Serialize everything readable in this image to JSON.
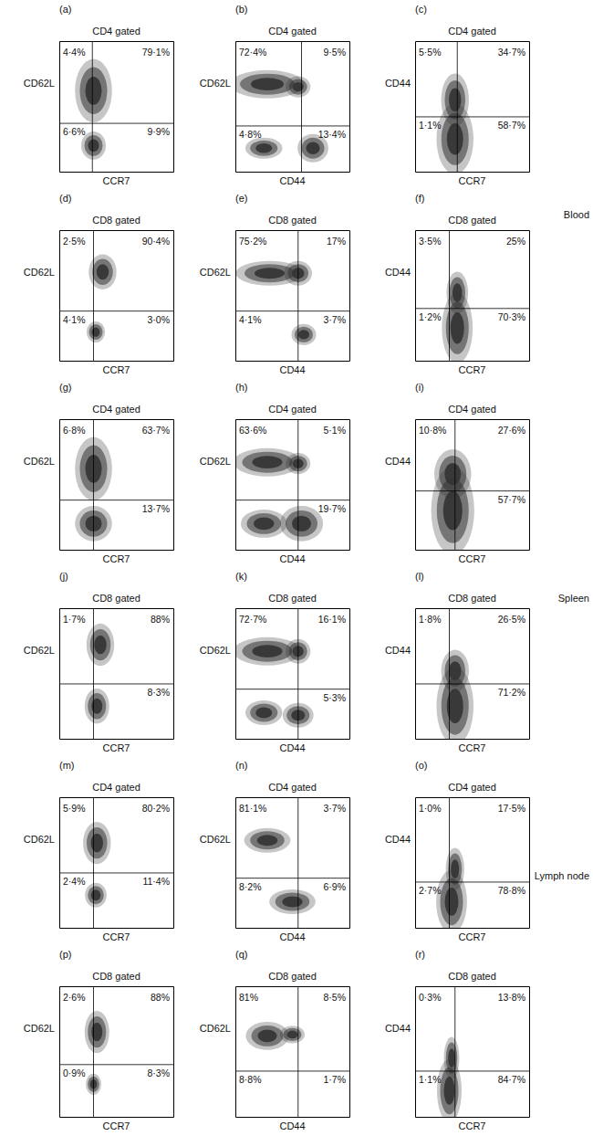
{
  "chart_data": [
    {
      "type": "scatter",
      "panel": "(a)",
      "title": "CD4 gated",
      "x_label": "CCR7",
      "y_label": "CD62L",
      "xlim": [
        0,
        100
      ],
      "ylim": [
        0,
        100
      ],
      "tick_labels": false,
      "color": "#333333",
      "data_labels": true,
      "gate": {
        "x": 29,
        "y": 37
      },
      "clusters": [
        {
          "x": 30,
          "y": 62,
          "rx": 12,
          "ry": 18
        },
        {
          "x": 30,
          "y": 20,
          "rx": 8,
          "ry": 8
        }
      ],
      "values": [
        4.4,
        79.1,
        6.6,
        9.9
      ],
      "value_labels": [
        "4·4%",
        "79·1%",
        "6·6%",
        "9·9%"
      ]
    },
    {
      "type": "scatter",
      "panel": "(b)",
      "title": "CD4 gated",
      "x_label": "CD44",
      "y_label": "CD62L",
      "xlim": [
        0,
        100
      ],
      "ylim": [
        0,
        100
      ],
      "tick_labels": false,
      "color": "#333333",
      "data_labels": true,
      "gate": {
        "x": 58,
        "y": 35
      },
      "clusters": [
        {
          "x": 28,
          "y": 67,
          "rx": 24,
          "ry": 8
        },
        {
          "x": 55,
          "y": 65,
          "rx": 8,
          "ry": 6
        },
        {
          "x": 68,
          "y": 18,
          "rx": 10,
          "ry": 8
        },
        {
          "x": 25,
          "y": 18,
          "rx": 12,
          "ry": 6
        }
      ],
      "values": [
        72.4,
        9.5,
        4.8,
        13.4
      ],
      "value_labels": [
        "72·4%",
        "9·5%",
        "4·8%",
        "13·4%"
      ]
    },
    {
      "type": "scatter",
      "panel": "(c)",
      "title": "CD4 gated",
      "x_label": "CCR7",
      "y_label": "CD44",
      "xlim": [
        0,
        100
      ],
      "ylim": [
        0,
        100
      ],
      "tick_labels": false,
      "color": "#333333",
      "data_labels": true,
      "gate": {
        "x": 37,
        "y": 42
      },
      "annotation": "Blood",
      "clusters": [
        {
          "x": 35,
          "y": 25,
          "rx": 12,
          "ry": 20
        },
        {
          "x": 35,
          "y": 55,
          "rx": 9,
          "ry": 15
        }
      ],
      "values": [
        5.5,
        34.7,
        1.1,
        58.7
      ],
      "value_labels": [
        "5·5%",
        "34·7%",
        "1·1%",
        "58·7%"
      ]
    },
    {
      "type": "scatter",
      "panel": "(d)",
      "title": "CD8 gated",
      "x_label": "CCR7",
      "y_label": "CD62L",
      "xlim": [
        0,
        100
      ],
      "ylim": [
        0,
        100
      ],
      "tick_labels": false,
      "color": "#333333",
      "data_labels": true,
      "gate": {
        "x": 30,
        "y": 38
      },
      "clusters": [
        {
          "x": 38,
          "y": 68,
          "rx": 9,
          "ry": 10
        },
        {
          "x": 32,
          "y": 22,
          "rx": 6,
          "ry": 6
        }
      ],
      "values": [
        2.5,
        90.4,
        4.1,
        3.0
      ],
      "value_labels": [
        "2·5%",
        "90·4%",
        "4·1%",
        "3·0%"
      ]
    },
    {
      "type": "scatter",
      "panel": "(e)",
      "title": "CD8 gated",
      "x_label": "CD44",
      "y_label": "CD62L",
      "xlim": [
        0,
        100
      ],
      "ylim": [
        0,
        100
      ],
      "tick_labels": false,
      "color": "#333333",
      "data_labels": true,
      "gate": {
        "x": 55,
        "y": 38
      },
      "clusters": [
        {
          "x": 30,
          "y": 67,
          "rx": 22,
          "ry": 7
        },
        {
          "x": 55,
          "y": 67,
          "rx": 9,
          "ry": 7
        },
        {
          "x": 60,
          "y": 20,
          "rx": 8,
          "ry": 6
        }
      ],
      "values": [
        75.2,
        17,
        4.1,
        3.7
      ],
      "value_labels": [
        "75·2%",
        "17%",
        "4·1%",
        "3·7%"
      ]
    },
    {
      "type": "scatter",
      "panel": "(f)",
      "title": "CD8 gated",
      "x_label": "CCR7",
      "y_label": "CD44",
      "xlim": [
        0,
        100
      ],
      "ylim": [
        0,
        100
      ],
      "tick_labels": false,
      "color": "#333333",
      "data_labels": true,
      "gate": {
        "x": 30,
        "y": 40
      },
      "clusters": [
        {
          "x": 37,
          "y": 25,
          "rx": 10,
          "ry": 20
        },
        {
          "x": 37,
          "y": 52,
          "rx": 7,
          "ry": 12
        }
      ],
      "values": [
        3.5,
        25,
        1.2,
        70.3
      ],
      "value_labels": [
        "3·5%",
        "25%",
        "1·2%",
        "70·3%"
      ]
    },
    {
      "type": "scatter",
      "panel": "(g)",
      "title": "CD4 gated",
      "x_label": "CCR7",
      "y_label": "CD62L",
      "xlim": [
        0,
        100
      ],
      "ylim": [
        0,
        100
      ],
      "tick_labels": false,
      "color": "#333333",
      "data_labels": true,
      "gate": {
        "x": 30,
        "y": 38
      },
      "clusters": [
        {
          "x": 30,
          "y": 62,
          "rx": 12,
          "ry": 18
        },
        {
          "x": 30,
          "y": 20,
          "rx": 12,
          "ry": 10
        }
      ],
      "values": [
        6.8,
        63.7,
        null,
        13.7
      ],
      "value_labels": [
        "6·8%",
        "63·7%",
        null,
        "13·7%"
      ]
    },
    {
      "type": "scatter",
      "panel": "(h)",
      "title": "CD4 gated",
      "x_label": "CD44",
      "y_label": "CD62L",
      "xlim": [
        0,
        100
      ],
      "ylim": [
        0,
        100
      ],
      "tick_labels": false,
      "color": "#333333",
      "data_labels": true,
      "gate": {
        "x": 55,
        "y": 38
      },
      "clusters": [
        {
          "x": 28,
          "y": 67,
          "rx": 22,
          "ry": 8
        },
        {
          "x": 55,
          "y": 66,
          "rx": 8,
          "ry": 6
        },
        {
          "x": 58,
          "y": 20,
          "rx": 14,
          "ry": 10
        },
        {
          "x": 25,
          "y": 20,
          "rx": 15,
          "ry": 8
        }
      ],
      "values": [
        63.6,
        5.1,
        null,
        19.7
      ],
      "value_labels": [
        "63·6%",
        "5·1%",
        null,
        "19·7%"
      ]
    },
    {
      "type": "scatter",
      "panel": "(i)",
      "title": "CD4 gated",
      "x_label": "CCR7",
      "y_label": "CD44",
      "xlim": [
        0,
        100
      ],
      "ylim": [
        0,
        100
      ],
      "tick_labels": false,
      "color": "#333333",
      "data_labels": true,
      "gate": {
        "x": 35,
        "y": 45
      },
      "annotation": "Spleen",
      "clusters": [
        {
          "x": 33,
          "y": 30,
          "rx": 14,
          "ry": 25
        },
        {
          "x": 33,
          "y": 58,
          "rx": 12,
          "ry": 14
        }
      ],
      "values": [
        10.8,
        27.6,
        null,
        57.7
      ],
      "value_labels": [
        "10·8%",
        "27·6%",
        null,
        "57·7%"
      ]
    },
    {
      "type": "scatter",
      "panel": "(j)",
      "title": "CD8 gated",
      "x_label": "CCR7",
      "y_label": "CD62L",
      "xlim": [
        0,
        100
      ],
      "ylim": [
        0,
        100
      ],
      "tick_labels": false,
      "color": "#333333",
      "data_labels": true,
      "gate": {
        "x": 30,
        "y": 42
      },
      "clusters": [
        {
          "x": 36,
          "y": 72,
          "rx": 9,
          "ry": 12
        },
        {
          "x": 33,
          "y": 25,
          "rx": 8,
          "ry": 10
        }
      ],
      "values": [
        1.7,
        88,
        null,
        8.3
      ],
      "value_labels": [
        "1·7%",
        "88%",
        null,
        "8·3%"
      ]
    },
    {
      "type": "scatter",
      "panel": "(k)",
      "title": "CD8 gated",
      "x_label": "CD44",
      "y_label": "CD62L",
      "xlim": [
        0,
        100
      ],
      "ylim": [
        0,
        100
      ],
      "tick_labels": false,
      "color": "#333333",
      "data_labels": true,
      "gate": {
        "x": 55,
        "y": 38
      },
      "clusters": [
        {
          "x": 28,
          "y": 67,
          "rx": 22,
          "ry": 8
        },
        {
          "x": 55,
          "y": 67,
          "rx": 8,
          "ry": 7
        },
        {
          "x": 55,
          "y": 18,
          "rx": 10,
          "ry": 7
        },
        {
          "x": 25,
          "y": 20,
          "rx": 12,
          "ry": 7
        }
      ],
      "values": [
        72.7,
        16.1,
        null,
        5.3
      ],
      "value_labels": [
        "72·7%",
        "16·1%",
        null,
        "5·3%"
      ]
    },
    {
      "type": "scatter",
      "panel": "(l)",
      "title": "CD8 gated",
      "x_label": "CCR7",
      "y_label": "CD44",
      "xlim": [
        0,
        100
      ],
      "ylim": [
        0,
        100
      ],
      "tick_labels": false,
      "color": "#333333",
      "data_labels": true,
      "gate": {
        "x": 30,
        "y": 42
      },
      "clusters": [
        {
          "x": 35,
          "y": 25,
          "rx": 12,
          "ry": 22
        },
        {
          "x": 35,
          "y": 52,
          "rx": 9,
          "ry": 12
        }
      ],
      "values": [
        1.8,
        26.5,
        null,
        71.2
      ],
      "value_labels": [
        "1·8%",
        "26·5%",
        null,
        "71·2%"
      ]
    },
    {
      "type": "scatter",
      "panel": "(m)",
      "title": "CD4 gated",
      "x_label": "CCR7",
      "y_label": "CD62L",
      "xlim": [
        0,
        100
      ],
      "ylim": [
        0,
        100
      ],
      "tick_labels": false,
      "color": "#333333",
      "data_labels": true,
      "gate": {
        "x": 30,
        "y": 42
      },
      "clusters": [
        {
          "x": 33,
          "y": 65,
          "rx": 9,
          "ry": 12
        },
        {
          "x": 32,
          "y": 25,
          "rx": 7,
          "ry": 7
        }
      ],
      "values": [
        5.9,
        80.2,
        2.4,
        11.4
      ],
      "value_labels": [
        "5·9%",
        "80·2%",
        "2·4%",
        "11·4%"
      ]
    },
    {
      "type": "scatter",
      "panel": "(n)",
      "title": "CD4 gated",
      "x_label": "CD44",
      "y_label": "CD62L",
      "xlim": [
        0,
        100
      ],
      "ylim": [
        0,
        100
      ],
      "tick_labels": false,
      "color": "#333333",
      "data_labels": true,
      "gate": {
        "x": 55,
        "y": 38
      },
      "clusters": [
        {
          "x": 28,
          "y": 67,
          "rx": 15,
          "ry": 7
        },
        {
          "x": 50,
          "y": 20,
          "rx": 15,
          "ry": 7
        }
      ],
      "values": [
        81.1,
        3.7,
        8.2,
        6.9
      ],
      "value_labels": [
        "81·1%",
        "3·7%",
        "8·2%",
        "6·9%"
      ]
    },
    {
      "type": "scatter",
      "panel": "(o)",
      "title": "CD4 gated",
      "x_label": "CCR7",
      "y_label": "CD44",
      "xlim": [
        0,
        100
      ],
      "ylim": [
        0,
        100
      ],
      "tick_labels": false,
      "color": "#333333",
      "data_labels": true,
      "gate": {
        "x": 30,
        "y": 35
      },
      "annotation": "Lymph node",
      "clusters": [
        {
          "x": 32,
          "y": 20,
          "rx": 10,
          "ry": 18
        },
        {
          "x": 35,
          "y": 45,
          "rx": 6,
          "ry": 12
        }
      ],
      "values": [
        1.0,
        17.5,
        2.7,
        78.8
      ],
      "value_labels": [
        "1·0%",
        "17·5%",
        "2·7%",
        "78·8%"
      ]
    },
    {
      "type": "scatter",
      "panel": "(p)",
      "title": "CD8 gated",
      "x_label": "CCR7",
      "y_label": "CD62L",
      "xlim": [
        0,
        100
      ],
      "ylim": [
        0,
        100
      ],
      "tick_labels": false,
      "color": "#333333",
      "data_labels": true,
      "gate": {
        "x": 30,
        "y": 40
      },
      "clusters": [
        {
          "x": 33,
          "y": 65,
          "rx": 8,
          "ry": 12
        },
        {
          "x": 30,
          "y": 25,
          "rx": 5,
          "ry": 6
        }
      ],
      "values": [
        2.6,
        88,
        0.9,
        8.3
      ],
      "value_labels": [
        "2·6%",
        "88%",
        "0·9%",
        "8·3%"
      ]
    },
    {
      "type": "scatter",
      "panel": "(q)",
      "title": "CD8 gated",
      "x_label": "CD44",
      "y_label": "CD62L",
      "xlim": [
        0,
        100
      ],
      "ylim": [
        0,
        100
      ],
      "tick_labels": false,
      "color": "#333333",
      "data_labels": true,
      "gate": {
        "x": 55,
        "y": 35
      },
      "clusters": [
        {
          "x": 28,
          "y": 62,
          "rx": 14,
          "ry": 8
        },
        {
          "x": 50,
          "y": 63,
          "rx": 8,
          "ry": 5
        }
      ],
      "values": [
        81,
        8.5,
        8.8,
        1.7
      ],
      "value_labels": [
        "81%",
        "8·5%",
        "8·8%",
        "1·7%"
      ]
    },
    {
      "type": "scatter",
      "panel": "(r)",
      "title": "CD8 gated",
      "x_label": "CCR7",
      "y_label": "CD44",
      "xlim": [
        0,
        100
      ],
      "ylim": [
        0,
        100
      ],
      "tick_labels": false,
      "color": "#333333",
      "data_labels": true,
      "gate": {
        "x": 35,
        "y": 35
      },
      "clusters": [
        {
          "x": 30,
          "y": 20,
          "rx": 8,
          "ry": 18
        },
        {
          "x": 32,
          "y": 45,
          "rx": 5,
          "ry": 12
        }
      ],
      "values": [
        0.3,
        13.8,
        1.1,
        84.7
      ],
      "value_labels": [
        "0·3%",
        "13·8%",
        "1·1%",
        "84·7%"
      ]
    }
  ]
}
